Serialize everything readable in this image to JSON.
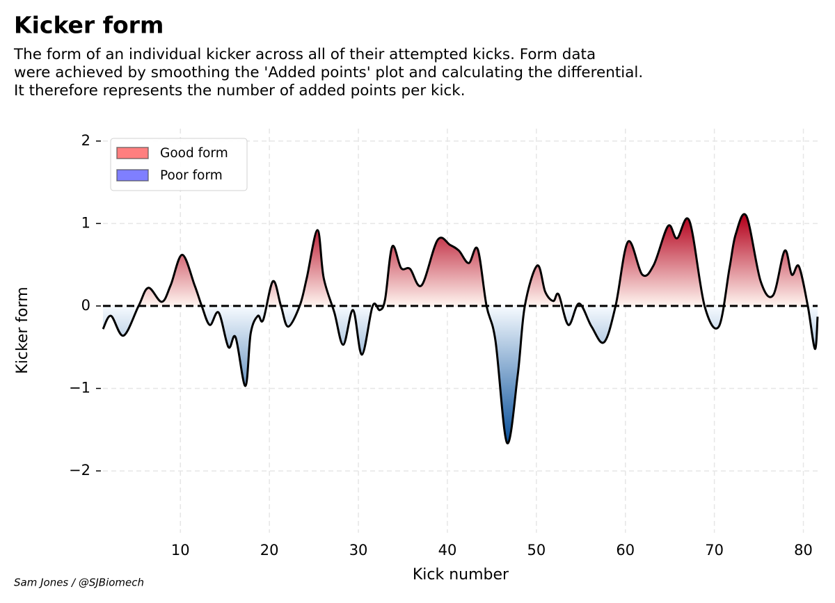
{
  "chart_data": {
    "type": "line",
    "title": "Kicker form",
    "subtitle": [
      "The form of an individual kicker across all of their attempted kicks. Form data",
      "were achieved by smoothing the 'Added points' plot and calculating the differential.",
      "It therefore represents the number of added points per kick."
    ],
    "x_label": "Kick number",
    "y_label": "Kicker form",
    "credit": "Sam Jones / @SJBiomech",
    "x": [
      1.3,
      2.2,
      3.6,
      5.3,
      6.4,
      7.9,
      8.9,
      10.2,
      11.6,
      12.4,
      13.3,
      14.3,
      15.4,
      16.2,
      17.3,
      17.9,
      18.7,
      19.3,
      20.4,
      21.3,
      22.1,
      23.4,
      24.2,
      25.4,
      26.1,
      27.3,
      28.3,
      29.4,
      30.4,
      31.6,
      32.4,
      33.0,
      33.8,
      34.8,
      35.8,
      37.1,
      38.9,
      40.3,
      41.3,
      42.4,
      43.4,
      44.4,
      45.4,
      46.7,
      47.9,
      48.7,
      50.1,
      51.0,
      51.9,
      52.5,
      53.6,
      54.8,
      56.2,
      57.6,
      58.9,
      60.3,
      61.9,
      63.2,
      64.8,
      65.8,
      67.2,
      68.9,
      70.5,
      71.7,
      72.4,
      73.6,
      75.2,
      76.6,
      77.9,
      78.7,
      79.5,
      80.5,
      81.3,
      81.6
    ],
    "series": [
      {
        "name": "Kicker form",
        "color": "#000000",
        "values": [
          -0.28,
          -0.12,
          -0.36,
          0,
          0.22,
          0.05,
          0.25,
          0.62,
          0.25,
          0,
          -0.23,
          -0.08,
          -0.5,
          -0.38,
          -0.97,
          -0.33,
          -0.12,
          -0.17,
          0.3,
          0,
          -0.25,
          0,
          0.34,
          0.92,
          0.34,
          -0.08,
          -0.47,
          -0.05,
          -0.59,
          0,
          -0.05,
          0.08,
          0.72,
          0.46,
          0.45,
          0.25,
          0.8,
          0.74,
          0.67,
          0.52,
          0.69,
          0,
          -0.42,
          -1.66,
          -0.84,
          0,
          0.49,
          0.17,
          0.06,
          0.14,
          -0.23,
          0.03,
          -0.25,
          -0.44,
          0,
          0.78,
          0.38,
          0.5,
          0.97,
          0.82,
          1.03,
          0,
          -0.25,
          0.46,
          0.87,
          1.09,
          0.3,
          0.13,
          0.67,
          0.38,
          0.48,
          0,
          -0.52,
          -0.13
        ]
      }
    ],
    "hline": 0,
    "xlim": [
      1.3,
      81.6
    ],
    "ylim": [
      -2.75,
      2.15
    ],
    "xticks": [
      10,
      20,
      30,
      40,
      50,
      60,
      70,
      80
    ],
    "yticks": [
      {
        "value": -2,
        "label": "−2"
      },
      {
        "value": -1,
        "label": "−1"
      },
      0,
      1,
      2
    ],
    "grid": true,
    "legend": [
      {
        "name": "Good form",
        "color": "#ff7f7f"
      },
      {
        "name": "Poor form",
        "color": "#7f7fff"
      }
    ],
    "legend_position": "upper left",
    "gradient": {
      "positive": [
        "#fff5f0",
        "#b3001b"
      ],
      "negative": [
        "#f7fbff",
        "#08509b"
      ]
    }
  }
}
